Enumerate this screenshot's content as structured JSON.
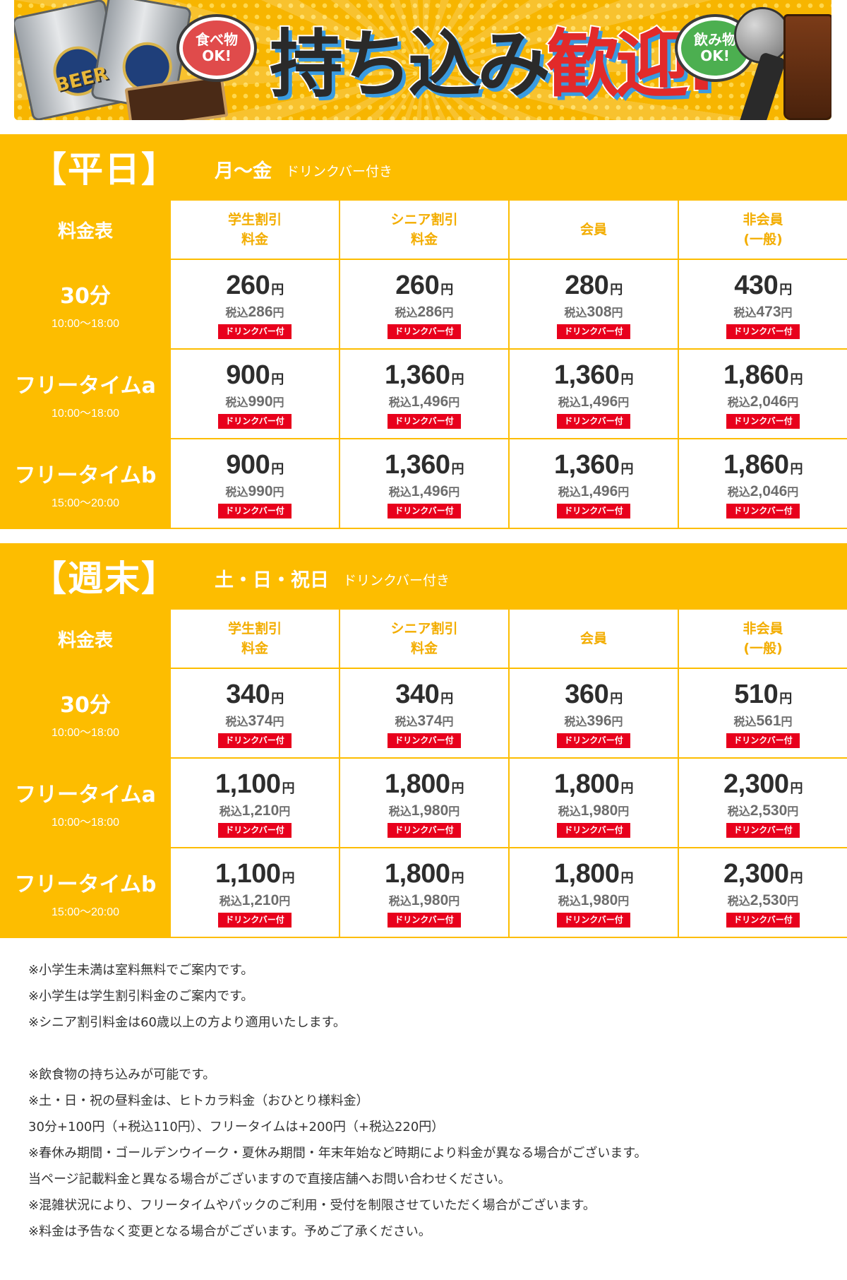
{
  "banner": {
    "headline_part1": "持ち込み",
    "headline_part2": "歓迎!",
    "food_bubble": "食べ物\nOK!",
    "drink_bubble": "飲み物\nOK!",
    "can_text": "BEER",
    "colors": {
      "background": "#f7b500",
      "accent_red": "#e22a2a",
      "accent_blue": "#3a9be0"
    }
  },
  "weekday": {
    "title": "【平日】",
    "days": "月〜金",
    "note": "ドリンクバー付き",
    "corner": "料金表",
    "columns": [
      {
        "line1": "学生割引",
        "line2": "料金"
      },
      {
        "line1": "シニア割引",
        "line2": "料金"
      },
      {
        "line1": "会員",
        "line2": ""
      },
      {
        "line1": "非会員",
        "line2": "(一般)"
      }
    ],
    "rows": [
      {
        "name": "30分",
        "time": "10:00〜18:00",
        "cells": [
          {
            "price": "260",
            "tax": "286"
          },
          {
            "price": "260",
            "tax": "286"
          },
          {
            "price": "280",
            "tax": "308"
          },
          {
            "price": "430",
            "tax": "473"
          }
        ]
      },
      {
        "name": "フリータイムa",
        "time": "10:00〜18:00",
        "cells": [
          {
            "price": "900",
            "tax": "990"
          },
          {
            "price": "1,360",
            "tax": "1,496"
          },
          {
            "price": "1,360",
            "tax": "1,496"
          },
          {
            "price": "1,860",
            "tax": "2,046"
          }
        ]
      },
      {
        "name": "フリータイムb",
        "time": "15:00〜20:00",
        "cells": [
          {
            "price": "900",
            "tax": "990"
          },
          {
            "price": "1,360",
            "tax": "1,496"
          },
          {
            "price": "1,360",
            "tax": "1,496"
          },
          {
            "price": "1,860",
            "tax": "2,046"
          }
        ]
      }
    ]
  },
  "weekend": {
    "title": "【週末】",
    "days": "土・日・祝日",
    "note": "ドリンクバー付き",
    "corner": "料金表",
    "columns": [
      {
        "line1": "学生割引",
        "line2": "料金"
      },
      {
        "line1": "シニア割引",
        "line2": "料金"
      },
      {
        "line1": "会員",
        "line2": ""
      },
      {
        "line1": "非会員",
        "line2": "(一般)"
      }
    ],
    "rows": [
      {
        "name": "30分",
        "time": "10:00〜18:00",
        "cells": [
          {
            "price": "340",
            "tax": "374"
          },
          {
            "price": "340",
            "tax": "374"
          },
          {
            "price": "360",
            "tax": "396"
          },
          {
            "price": "510",
            "tax": "561"
          }
        ]
      },
      {
        "name": "フリータイムa",
        "time": "10:00〜18:00",
        "cells": [
          {
            "price": "1,100",
            "tax": "1,210"
          },
          {
            "price": "1,800",
            "tax": "1,980"
          },
          {
            "price": "1,800",
            "tax": "1,980"
          },
          {
            "price": "2,300",
            "tax": "2,530"
          }
        ]
      },
      {
        "name": "フリータイムb",
        "time": "15:00〜20:00",
        "cells": [
          {
            "price": "1,100",
            "tax": "1,210"
          },
          {
            "price": "1,800",
            "tax": "1,980"
          },
          {
            "price": "1,800",
            "tax": "1,980"
          },
          {
            "price": "2,300",
            "tax": "2,530"
          }
        ]
      }
    ]
  },
  "labels": {
    "yen": "円",
    "tax_prefix": "税込",
    "drink_badge": "ドリンクバー付"
  },
  "notes": [
    "※小学生未満は室料無料でご案内です。",
    "※小学生は学生割引料金のご案内です。",
    "※シニア割引料金は60歳以上の方より適用いたします。",
    "",
    "※飲食物の持ち込みが可能です。",
    "※土・日・祝の昼料金は、ヒトカラ料金（おひとり様料金）",
    "30分+100円（+税込110円）、フリータイムは+200円（+税込220円）",
    "※春休み期間・ゴールデンウイーク・夏休み期間・年末年始など時期により料金が異なる場合がございます。",
    "当ページ記載料金と異なる場合がございますので直接店舗へお問い合わせください。",
    "※混雑状況により、フリータイムやパックのご利用・受付を制限させていただく場合がございます。",
    "※料金は予告なく変更となる場合がございます。予めご了承ください。"
  ],
  "colors": {
    "table_yellow": "#fdbd00",
    "column_header_text": "#f3ad00",
    "badge_red": "#e8001c"
  }
}
